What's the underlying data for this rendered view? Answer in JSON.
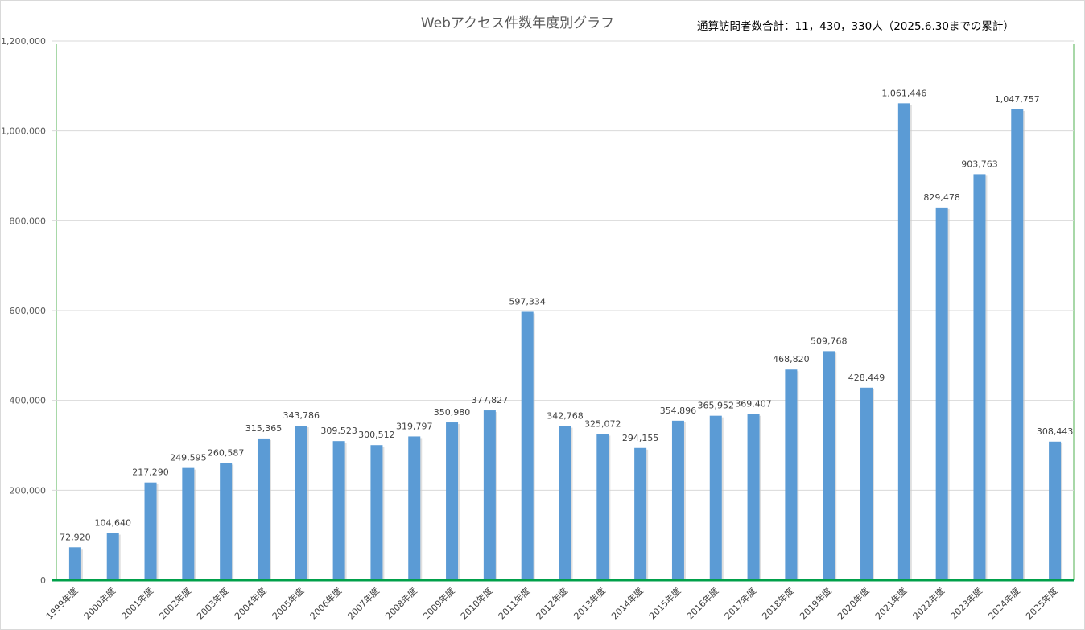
{
  "chart_data": {
    "type": "bar",
    "title": "Webアクセス件数年度別グラフ",
    "subtitle": "通算訪問者数合計：11，430，330人（2025.6.30までの累計）",
    "xlabel": "",
    "ylabel": "",
    "ylim": [
      0,
      1200000
    ],
    "yticks": [
      "0",
      "200,000",
      "400,000",
      "600,000",
      "800,000",
      "1,000,000",
      "1,200,000"
    ],
    "grid": true,
    "legend": "none",
    "colors": {
      "bar": "#5b9bd5",
      "grid": "#d9d9d9",
      "plot_border": "#a8d8a8",
      "baseline": "#00a04a"
    },
    "categories": [
      "1999年度",
      "2000年度",
      "2001年度",
      "2002年度",
      "2003年度",
      "2004年度",
      "2005年度",
      "2006年度",
      "2007年度",
      "2008年度",
      "2009年度",
      "2010年度",
      "2011年度",
      "2012年度",
      "2013年度",
      "2014年度",
      "2015年度",
      "2016年度",
      "2017年度",
      "2018年度",
      "2019年度",
      "2020年度",
      "2021年度",
      "2022年度",
      "2023年度",
      "2024年度",
      "2025年度"
    ],
    "values": [
      72920,
      104640,
      217290,
      249595,
      260587,
      315365,
      343786,
      309523,
      300512,
      319797,
      350980,
      377827,
      597334,
      342768,
      325072,
      294155,
      354896,
      365952,
      369407,
      468820,
      509768,
      428449,
      1061446,
      829478,
      903763,
      1047757,
      308443
    ],
    "data_labels": [
      "72,920",
      "104,640",
      "217,290",
      "249,595",
      "260,587",
      "315,365",
      "343,786",
      "309,523",
      "300,512",
      "319,797",
      "350,980",
      "377,827",
      "597,334",
      "342,768",
      "325,072",
      "294,155",
      "354,896",
      "365,952",
      "369,407",
      "468,820",
      "509,768",
      "428,449",
      "1,061,446",
      "829,478",
      "903,763",
      "1,047,757",
      "308,443"
    ]
  }
}
